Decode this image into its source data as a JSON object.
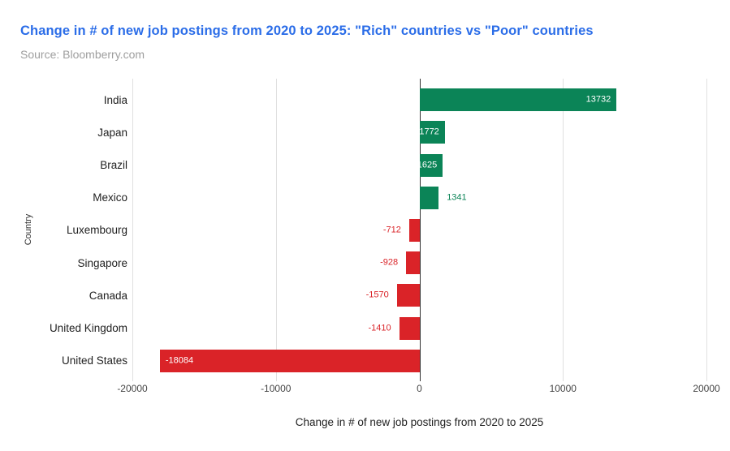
{
  "header": {
    "title": "Change in # of new job postings from 2020 to 2025: \"Rich\" countries vs \"Poor\" countries",
    "source": "Source: Bloomberry.com"
  },
  "chart_data": {
    "type": "bar",
    "orientation": "horizontal",
    "title": "Change in # of new job postings from 2020 to 2025: \"Rich\" countries vs \"Poor\" countries",
    "subtitle": "Source: Bloomberry.com",
    "categories": [
      "India",
      "Japan",
      "Brazil",
      "Mexico",
      "Luxembourg",
      "Singapore",
      "Canada",
      "United Kingdom",
      "United States"
    ],
    "values": [
      13732,
      1772,
      1625,
      1341,
      -712,
      -928,
      -1570,
      -1410,
      -18084
    ],
    "xlabel": "Change in # of new job postings from 2020 to 2025",
    "ylabel": "Country",
    "xlim": [
      -20000,
      20000
    ],
    "xticks": [
      -20000,
      -10000,
      0,
      10000,
      20000
    ],
    "grid": "vertical-gridlines-on",
    "legend": "none",
    "bar_colors": {
      "positive": "#0b8457",
      "negative": "#da2328"
    }
  },
  "colors": {
    "title_text": "#2b6de8",
    "subtitle_text": "#9e9e9e",
    "positive_bar": "#0b8457",
    "negative_bar": "#da2328",
    "gridline": "#e0e0e0",
    "zero_line": "#333333",
    "inside_value_text": "#ffffff"
  }
}
